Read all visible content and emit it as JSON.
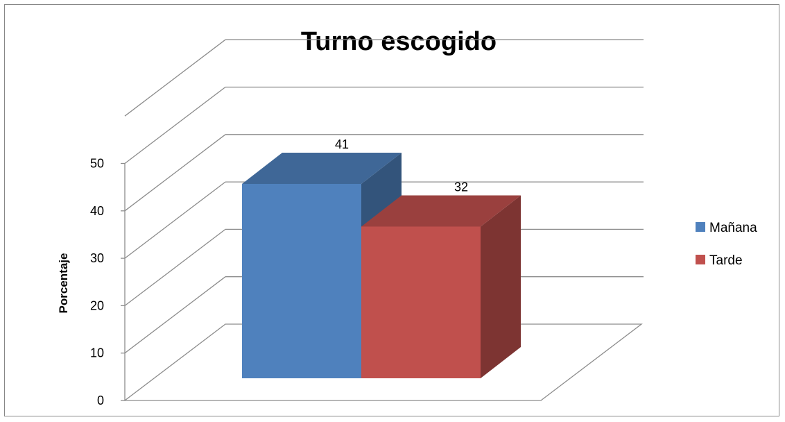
{
  "chart_data": {
    "type": "bar",
    "title": "Turno escogido",
    "ylabel": "Porcentaje",
    "xlabel": "",
    "ylim": [
      0,
      50
    ],
    "yticks": [
      0,
      10,
      20,
      30,
      40,
      50
    ],
    "grid": true,
    "legend_position": "right",
    "series": [
      {
        "name": "Mañana",
        "value": 41,
        "color": "#4F81BD"
      },
      {
        "name": "Tarde",
        "value": 32,
        "color": "#C0504D"
      }
    ]
  }
}
